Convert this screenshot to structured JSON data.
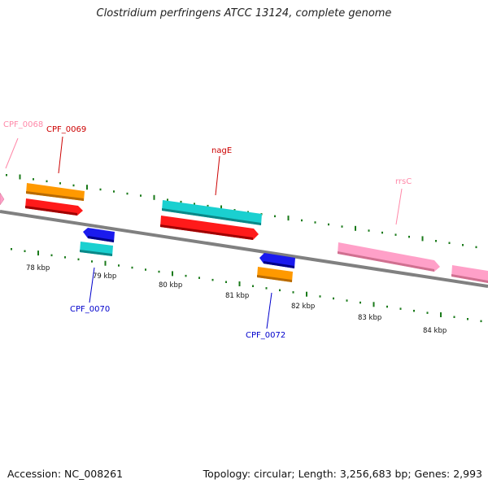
{
  "title": "Clostridium perfringens ATCC 13124, complete genome",
  "footer": {
    "accession": "Accession: NC_008261",
    "info": "Topology: circular; Length: 3,256,683 bp; Genes: 2,993"
  },
  "ticks": {
    "labels": [
      "78 kbp",
      "79 kbp",
      "80 kbp",
      "81 kbp",
      "82 kbp",
      "83 kbp",
      "84 kbp"
    ]
  },
  "genes": [
    {
      "name": "CPF_0068",
      "label_color": "#ff88a8"
    },
    {
      "name": "CPF_0069",
      "label_color": "#cc0000"
    },
    {
      "name": "nagE",
      "label_color": "#cc0000"
    },
    {
      "name": "rrsC",
      "label_color": "#ff88a8"
    },
    {
      "name": "CPF_0070",
      "label_color": "#0000cc"
    },
    {
      "name": "CPF_0072",
      "label_color": "#0000cc"
    }
  ],
  "colors": {
    "backbone": "#808080",
    "tick": "#1a7a1a",
    "red": "#ff1a1a",
    "orange": "#ff9900",
    "cyan": "#1ad0d0",
    "blue": "#1a1aee",
    "pink": "#ffa0c8"
  }
}
